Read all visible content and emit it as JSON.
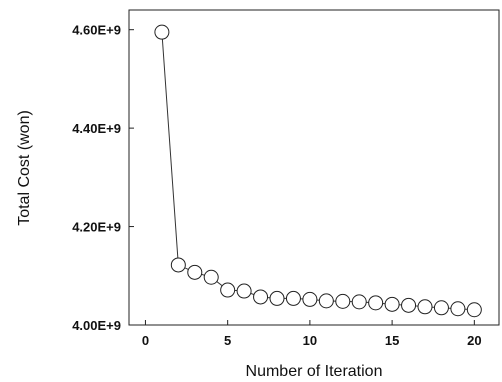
{
  "chart_data": {
    "type": "line",
    "title": "",
    "xlabel": "Number of Iteration",
    "ylabel": "Total Cost (won)",
    "xlim": [
      -1,
      21.5
    ],
    "ylim": [
      4000000000.0,
      4640000000.0
    ],
    "x_ticks": [
      0,
      5,
      10,
      15,
      20
    ],
    "x_tick_labels": [
      "0",
      "5",
      "10",
      "15",
      "20"
    ],
    "y_ticks": [
      4000000000.0,
      4200000000.0,
      4400000000.0,
      4600000000.0
    ],
    "y_tick_labels": [
      "4.00E+9",
      "4.20E+9",
      "4.40E+9",
      "4.60E+9"
    ],
    "grid": false,
    "marker": "open-circle",
    "series": [
      {
        "x": [
          1,
          2,
          3,
          4,
          5,
          6,
          7,
          8,
          9,
          10,
          11,
          12,
          13,
          14,
          15,
          16,
          17,
          18,
          19,
          20
        ],
        "values": [
          4595000000.0,
          4122000000.0,
          4107000000.0,
          4097000000.0,
          4071000000.0,
          4069000000.0,
          4057000000.0,
          4054000000.0,
          4054000000.0,
          4052000000.0,
          4049000000.0,
          4048000000.0,
          4047000000.0,
          4045000000.0,
          4042000000.0,
          4040000000.0,
          4037000000.0,
          4035000000.0,
          4033000000.0,
          4031000000.0
        ]
      }
    ]
  }
}
